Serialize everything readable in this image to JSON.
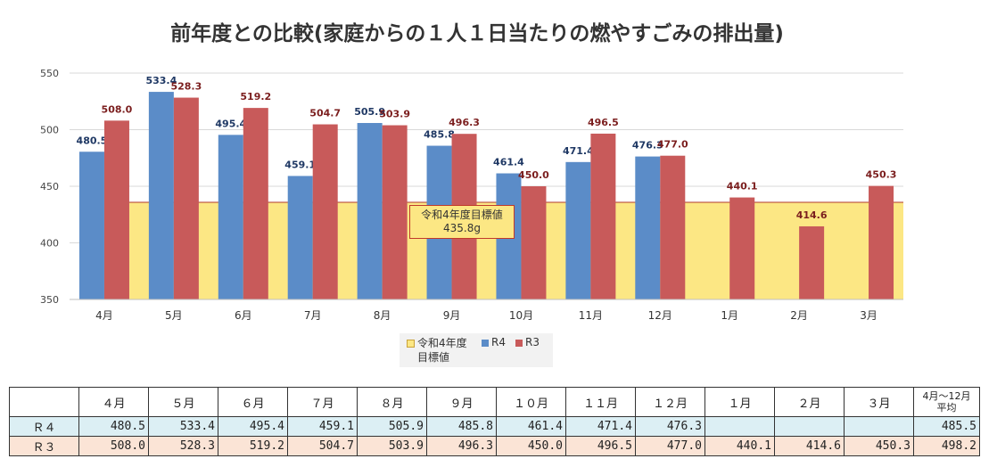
{
  "title": "前年度との比較(家庭からの１人１日当たりの燃やすごみの排出量)",
  "chart_data": {
    "type": "bar",
    "title": "前年度との比較(家庭からの１人１日当たりの燃やすごみの排出量)",
    "categories": [
      "4月",
      "5月",
      "6月",
      "7月",
      "8月",
      "9月",
      "10月",
      "11月",
      "12月",
      "1月",
      "2月",
      "3月"
    ],
    "series": [
      {
        "name": "R4",
        "color": "#5b8cc8",
        "values": [
          480.5,
          533.4,
          495.4,
          459.1,
          505.9,
          485.8,
          461.4,
          471.4,
          476.3,
          null,
          null,
          null
        ]
      },
      {
        "name": "R3",
        "color": "#c85a5a",
        "values": [
          508.0,
          528.3,
          519.2,
          504.7,
          503.9,
          496.3,
          450.0,
          496.5,
          477.0,
          440.1,
          414.6,
          450.3
        ]
      }
    ],
    "target": {
      "name": "令和4年度目標値",
      "value": 435.8,
      "color": "#fce784"
    },
    "yticks": [
      350,
      400,
      450,
      500,
      550
    ],
    "ylim": [
      350,
      550
    ],
    "grid": true,
    "legend": "bottom-center"
  },
  "target_box": {
    "line1": "令和4年度目標値",
    "line2": "435.8g"
  },
  "legend": {
    "target_line1": "令和4年度",
    "target_line2": "目標値",
    "r4": "R4",
    "r3": "R3"
  },
  "table": {
    "headers": [
      "４月",
      "５月",
      "６月",
      "７月",
      "８月",
      "９月",
      "１０月",
      "１１月",
      "１２月",
      "１月",
      "２月",
      "３月"
    ],
    "avg_header_line1": "4月～12月",
    "avg_header_line2": "平均",
    "rows": [
      {
        "label": "Ｒ４",
        "values": [
          "480.5",
          "533.4",
          "495.4",
          "459.1",
          "505.9",
          "485.8",
          "461.4",
          "471.4",
          "476.3",
          "",
          "",
          ""
        ],
        "avg": "485.5"
      },
      {
        "label": "Ｒ３",
        "values": [
          "508.0",
          "528.3",
          "519.2",
          "504.7",
          "503.9",
          "496.3",
          "450.0",
          "496.5",
          "477.0",
          "440.1",
          "414.6",
          "450.3"
        ],
        "avg": "498.2"
      }
    ]
  }
}
